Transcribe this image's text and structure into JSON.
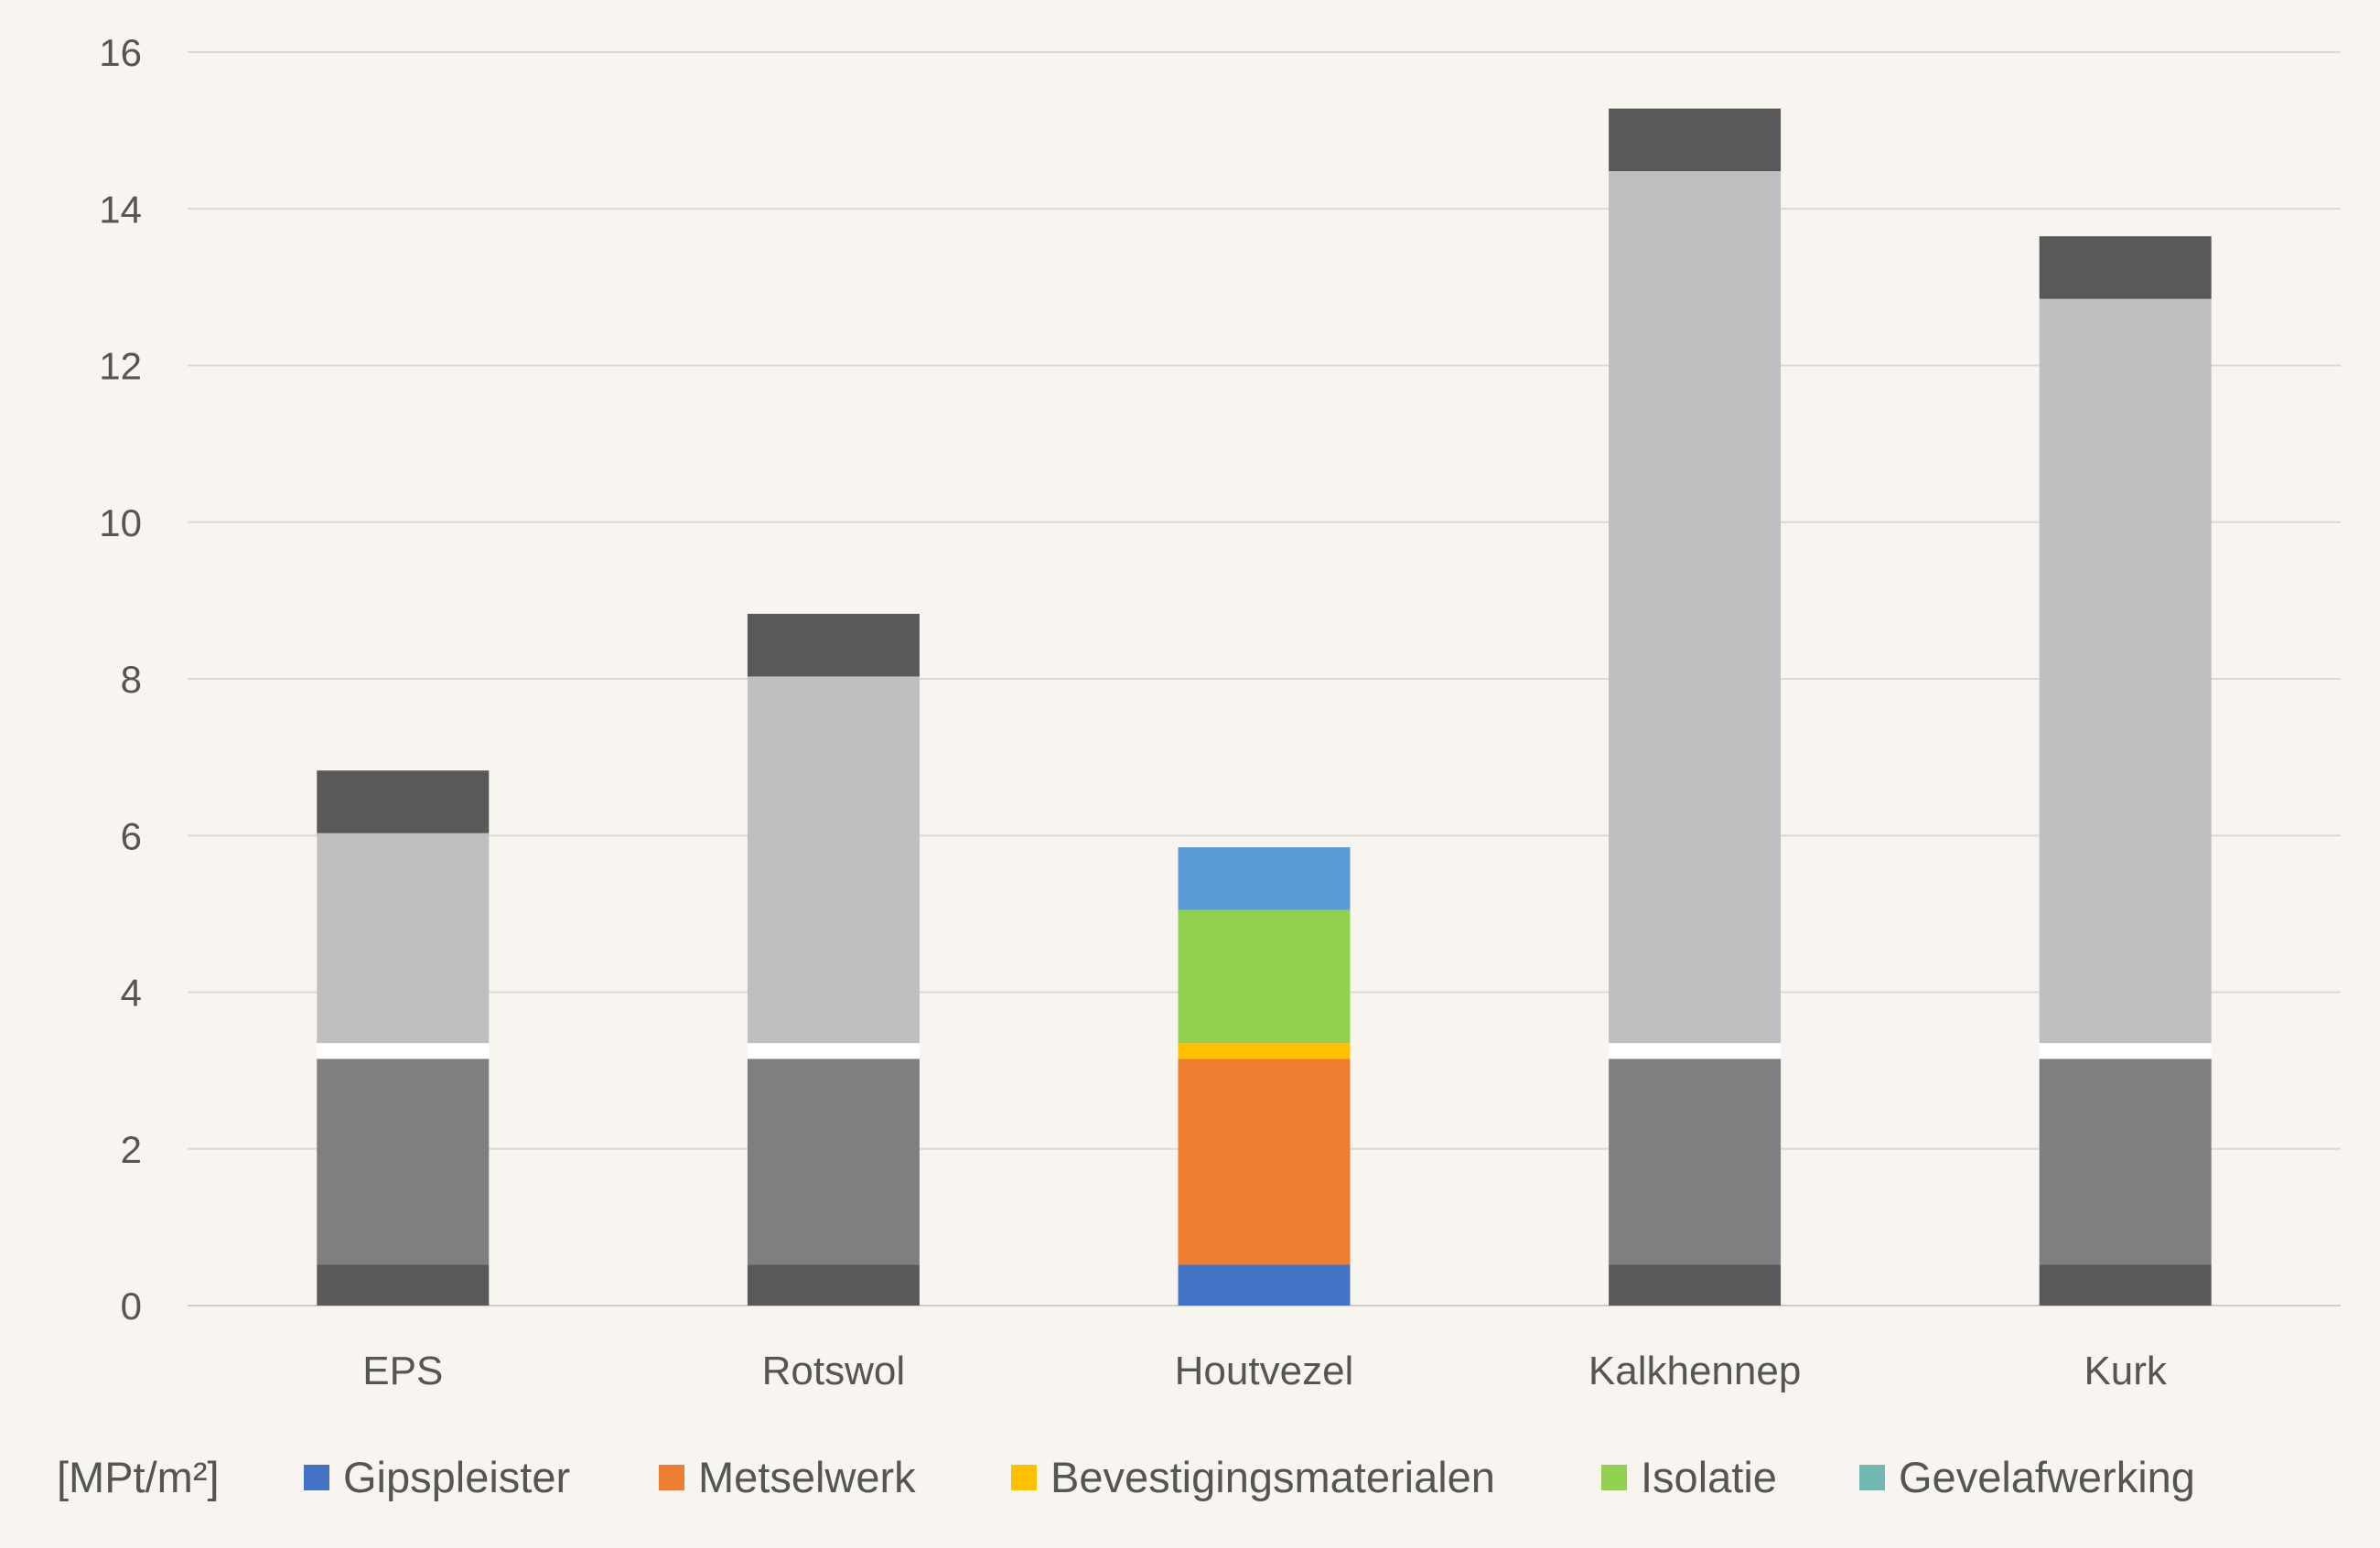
{
  "chart_data": {
    "type": "bar",
    "stacked": true,
    "categories": [
      "EPS",
      "Rotswol",
      "Houtvezel",
      "Kalkhennep",
      "Kurk"
    ],
    "unit_label": "[MPt/m²]",
    "ylim": [
      0,
      16
    ],
    "yticks": [
      "0",
      "2",
      "4",
      "6",
      "8",
      "10",
      "12",
      "14",
      "16"
    ],
    "grid": true,
    "legend_position": "bottom",
    "legend": [
      {
        "name": "Gipspleister",
        "color": "#4472c4"
      },
      {
        "name": "Metselwerk",
        "color": "#ed7d31"
      },
      {
        "name": "Bevestigingsmaterialen",
        "color": "#ffc000"
      },
      {
        "name": "Isolatie",
        "color": "#92d050"
      },
      {
        "name": "Gevelafwerking",
        "color": "#70b8b0"
      }
    ],
    "stacks": [
      {
        "category": "EPS",
        "segments": [
          {
            "value": 0.52,
            "color": "#595959"
          },
          {
            "value": 2.63,
            "color": "#7f7f7f"
          },
          {
            "value": 0.2,
            "color": "#ffffff"
          },
          {
            "value": 2.68,
            "color": "#bfbfbf"
          },
          {
            "value": 0.8,
            "color": "#595959"
          }
        ]
      },
      {
        "category": "Rotswol",
        "segments": [
          {
            "value": 0.52,
            "color": "#595959"
          },
          {
            "value": 2.63,
            "color": "#7f7f7f"
          },
          {
            "value": 0.2,
            "color": "#ffffff"
          },
          {
            "value": 4.68,
            "color": "#bfbfbf"
          },
          {
            "value": 0.8,
            "color": "#595959"
          }
        ]
      },
      {
        "category": "Houtvezel",
        "segments": [
          {
            "value": 0.52,
            "color": "#4472c4"
          },
          {
            "value": 2.63,
            "color": "#ed7d31"
          },
          {
            "value": 0.2,
            "color": "#ffc000"
          },
          {
            "value": 1.7,
            "color": "#92d050"
          },
          {
            "value": 0.8,
            "color": "#5b9bd5"
          }
        ]
      },
      {
        "category": "Kalkhennep",
        "segments": [
          {
            "value": 0.52,
            "color": "#595959"
          },
          {
            "value": 2.63,
            "color": "#7f7f7f"
          },
          {
            "value": 0.2,
            "color": "#ffffff"
          },
          {
            "value": 11.13,
            "color": "#bfbfbf"
          },
          {
            "value": 0.8,
            "color": "#595959"
          }
        ]
      },
      {
        "category": "Kurk",
        "segments": [
          {
            "value": 0.52,
            "color": "#595959"
          },
          {
            "value": 2.63,
            "color": "#7f7f7f"
          },
          {
            "value": 0.2,
            "color": "#ffffff"
          },
          {
            "value": 9.5,
            "color": "#bfbfbf"
          },
          {
            "value": 0.8,
            "color": "#595959"
          }
        ]
      }
    ]
  }
}
